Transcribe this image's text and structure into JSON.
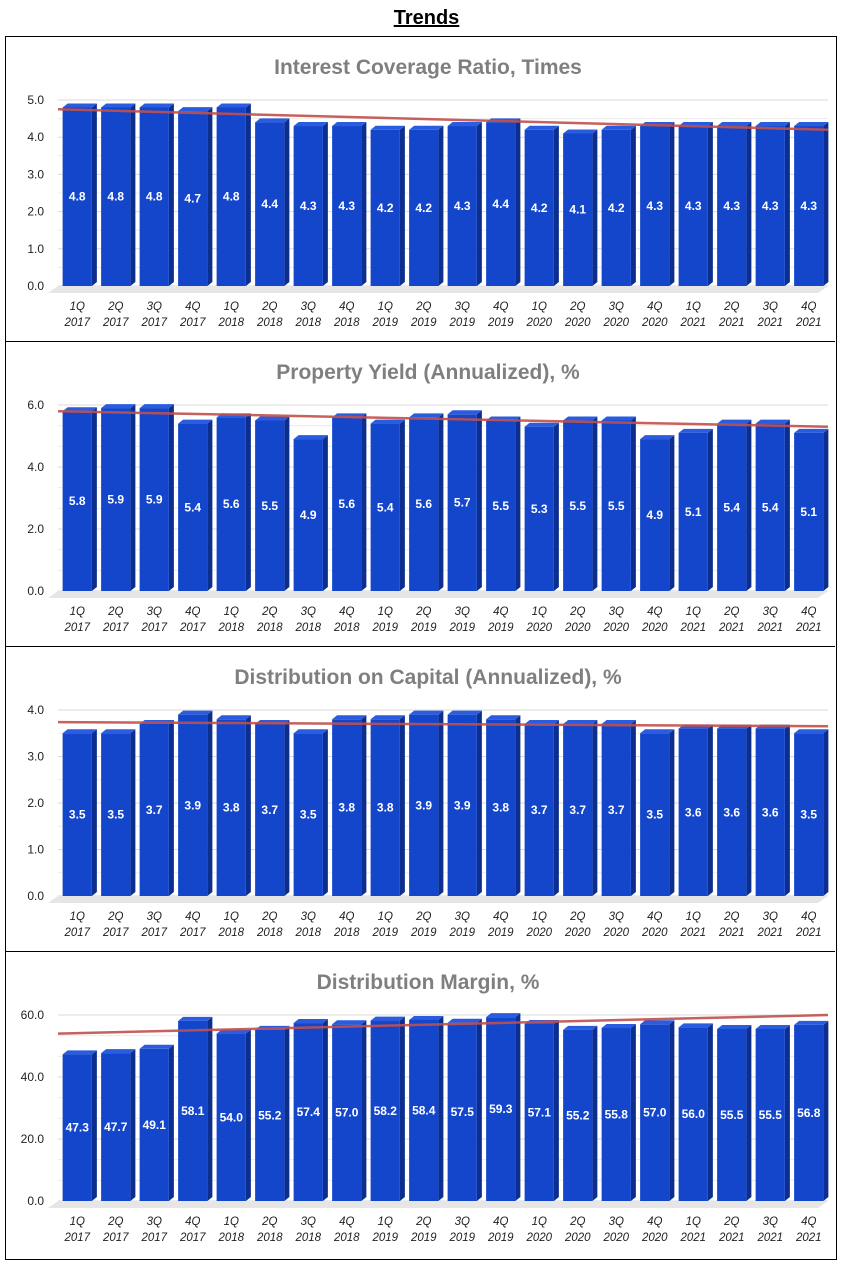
{
  "page_title": "Trends",
  "colors": {
    "bar_front": "#1446cc",
    "bar_side": "#0c2f8f",
    "bar_top": "#2a5ce0",
    "trend": "#c0504d",
    "grid": "#d9d9d9",
    "title_text": "#7f7f7f",
    "label_text": "#ffffff"
  },
  "chart_data": [
    {
      "type": "bar",
      "title": "Interest Coverage Ratio, Times",
      "categories": [
        "1Q 2017",
        "2Q 2017",
        "3Q 2017",
        "4Q 2017",
        "1Q 2018",
        "2Q 2018",
        "3Q 2018",
        "4Q 2018",
        "1Q 2019",
        "2Q 2019",
        "3Q 2019",
        "4Q 2019",
        "1Q 2020",
        "2Q 2020",
        "3Q 2020",
        "4Q 2020",
        "1Q 2021",
        "2Q 2021",
        "3Q 2021",
        "4Q 2021"
      ],
      "values": [
        4.8,
        4.8,
        4.8,
        4.7,
        4.8,
        4.4,
        4.3,
        4.3,
        4.2,
        4.2,
        4.3,
        4.4,
        4.2,
        4.1,
        4.2,
        4.3,
        4.3,
        4.3,
        4.3,
        4.3
      ],
      "value_labels": [
        "4.8",
        "4.8",
        "4.8",
        "4.7",
        "4.8",
        "4.4",
        "4.3",
        "4.3",
        "4.2",
        "4.2",
        "4.3",
        "4.4",
        "4.2",
        "4.1",
        "4.2",
        "4.3",
        "4.3",
        "4.3",
        "4.3",
        "4.3"
      ],
      "yticks": [
        0,
        1,
        2,
        3,
        4,
        5
      ],
      "ytick_labels": [
        "0.0",
        "1.0",
        "2.0",
        "3.0",
        "4.0",
        "5.0"
      ],
      "ylim": [
        0,
        5
      ],
      "trendline": [
        4.75,
        4.2
      ],
      "xlabel": "",
      "ylabel": ""
    },
    {
      "type": "bar",
      "title": "Property Yield (Annualized), %",
      "categories": [
        "1Q 2017",
        "2Q 2017",
        "3Q 2017",
        "4Q 2017",
        "1Q 2018",
        "2Q 2018",
        "3Q 2018",
        "4Q 2018",
        "1Q 2019",
        "2Q 2019",
        "3Q 2019",
        "4Q 2019",
        "1Q 2020",
        "2Q 2020",
        "3Q 2020",
        "4Q 2020",
        "1Q 2021",
        "2Q 2021",
        "3Q 2021",
        "4Q 2021"
      ],
      "values": [
        5.8,
        5.9,
        5.9,
        5.4,
        5.6,
        5.5,
        4.9,
        5.6,
        5.4,
        5.6,
        5.7,
        5.5,
        5.3,
        5.5,
        5.5,
        4.9,
        5.1,
        5.4,
        5.4,
        5.1
      ],
      "value_labels": [
        "5.8",
        "5.9",
        "5.9",
        "5.4",
        "5.6",
        "5.5",
        "4.9",
        "5.6",
        "5.4",
        "5.6",
        "5.7",
        "5.5",
        "5.3",
        "5.5",
        "5.5",
        "4.9",
        "5.1",
        "5.4",
        "5.4",
        "5.1"
      ],
      "yticks": [
        0,
        2,
        4,
        6
      ],
      "ytick_labels": [
        "0.0",
        "2.0",
        "4.0",
        "6.0"
      ],
      "ylim": [
        0,
        6
      ],
      "trendline": [
        5.8,
        5.3
      ],
      "xlabel": "",
      "ylabel": ""
    },
    {
      "type": "bar",
      "title": "Distribution on Capital (Annualized), %",
      "categories": [
        "1Q 2017",
        "2Q 2017",
        "3Q 2017",
        "4Q 2017",
        "1Q 2018",
        "2Q 2018",
        "3Q 2018",
        "4Q 2018",
        "1Q 2019",
        "2Q 2019",
        "3Q 2019",
        "4Q 2019",
        "1Q 2020",
        "2Q 2020",
        "3Q 2020",
        "4Q 2020",
        "1Q 2021",
        "2Q 2021",
        "3Q 2021",
        "4Q 2021"
      ],
      "values": [
        3.5,
        3.5,
        3.7,
        3.9,
        3.8,
        3.7,
        3.5,
        3.8,
        3.8,
        3.9,
        3.9,
        3.8,
        3.7,
        3.7,
        3.7,
        3.5,
        3.6,
        3.6,
        3.6,
        3.5
      ],
      "value_labels": [
        "3.5",
        "3.5",
        "3.7",
        "3.9",
        "3.8",
        "3.7",
        "3.5",
        "3.8",
        "3.8",
        "3.9",
        "3.9",
        "3.8",
        "3.7",
        "3.7",
        "3.7",
        "3.5",
        "3.6",
        "3.6",
        "3.6",
        "3.5"
      ],
      "yticks": [
        0,
        1,
        2,
        3,
        4
      ],
      "ytick_labels": [
        "0.0",
        "1.0",
        "2.0",
        "3.0",
        "4.0"
      ],
      "ylim": [
        0,
        4
      ],
      "trendline": [
        3.74,
        3.65
      ],
      "xlabel": "",
      "ylabel": ""
    },
    {
      "type": "bar",
      "title": "Distribution Margin, %",
      "categories": [
        "1Q 2017",
        "2Q 2017",
        "3Q 2017",
        "4Q 2017",
        "1Q 2018",
        "2Q 2018",
        "3Q 2018",
        "4Q 2018",
        "1Q 2019",
        "2Q 2019",
        "3Q 2019",
        "4Q 2019",
        "1Q 2020",
        "2Q 2020",
        "3Q 2020",
        "4Q 2020",
        "1Q 2021",
        "2Q 2021",
        "3Q 2021",
        "4Q 2021"
      ],
      "values": [
        47.3,
        47.7,
        49.1,
        58.1,
        54.0,
        55.2,
        57.4,
        57.0,
        58.2,
        58.4,
        57.5,
        59.3,
        57.1,
        55.2,
        55.8,
        57.0,
        56.0,
        55.5,
        55.5,
        56.8
      ],
      "value_labels": [
        "47.3",
        "47.7",
        "49.1",
        "58.1",
        "54.0",
        "55.2",
        "57.4",
        "57.0",
        "58.2",
        "58.4",
        "57.5",
        "59.3",
        "57.1",
        "55.2",
        "55.8",
        "57.0",
        "56.0",
        "55.5",
        "55.5",
        "56.8"
      ],
      "yticks": [
        0,
        20,
        40,
        60
      ],
      "ytick_labels": [
        "0.0",
        "20.0",
        "40.0",
        "60.0"
      ],
      "ylim": [
        0,
        60
      ],
      "trendline": [
        54,
        60
      ],
      "xlabel": "",
      "ylabel": ""
    }
  ]
}
